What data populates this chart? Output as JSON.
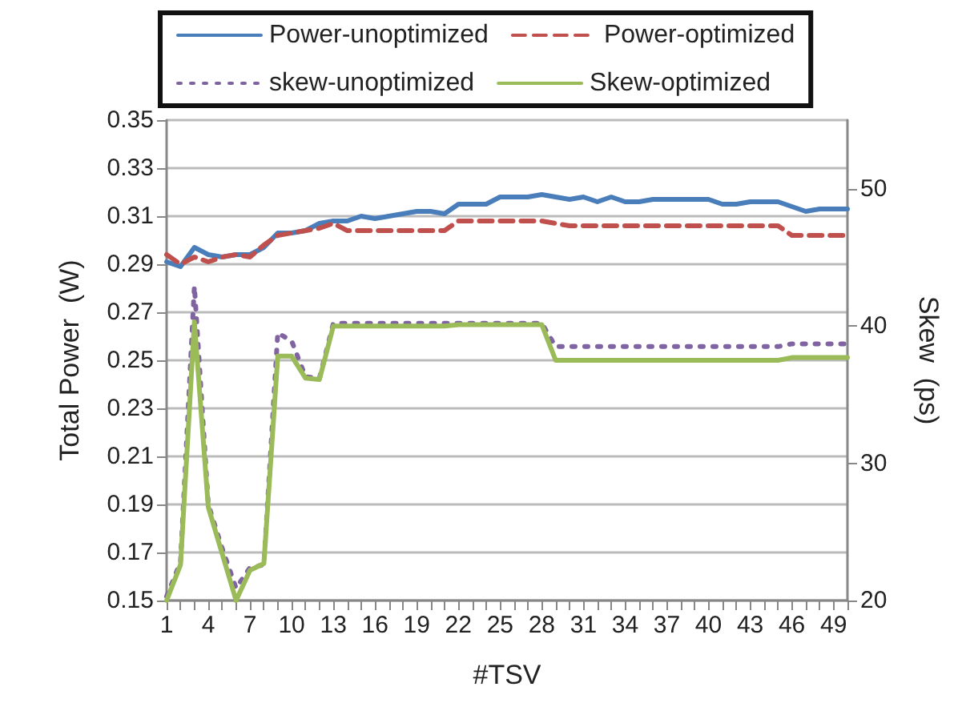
{
  "chart_data": {
    "type": "line",
    "xlabel": "#TSV",
    "ylabel": "Total Power  (W)",
    "y2label": "Skew  (ps)",
    "categories": [
      "1",
      null,
      null,
      "4",
      null,
      null,
      "7",
      null,
      null,
      "10",
      null,
      null,
      "13",
      null,
      null,
      "16",
      null,
      null,
      "19",
      null,
      null,
      "22",
      null,
      null,
      "25",
      null,
      null,
      "28",
      null,
      null,
      "31",
      null,
      null,
      "34",
      null,
      null,
      "37",
      null,
      null,
      "40",
      null,
      null,
      "43",
      null,
      null,
      "46",
      null,
      null,
      "49",
      null
    ],
    "ylim": [
      0.15,
      0.35
    ],
    "yticks": [
      0.15,
      0.17,
      0.19,
      0.21,
      0.23,
      0.25,
      0.27,
      0.29,
      0.31,
      0.33,
      0.35
    ],
    "y2lim": [
      20,
      55
    ],
    "y2ticks": [
      20,
      30,
      40,
      50
    ],
    "grid": "y",
    "legend": "top",
    "marker": "none",
    "series": [
      {
        "name": "Power-unoptimized",
        "color": "#4a7ebb",
        "line_style": "solid",
        "values": [
          0.291,
          0.289,
          0.297,
          0.294,
          0.293,
          0.294,
          0.294,
          0.297,
          0.303,
          0.303,
          0.304,
          0.307,
          0.308,
          0.308,
          0.31,
          0.309,
          0.31,
          0.311,
          0.312,
          0.312,
          0.311,
          0.315,
          0.315,
          0.315,
          0.318,
          0.318,
          0.318,
          0.319,
          0.318,
          0.317,
          0.318,
          0.316,
          0.318,
          0.316,
          0.316,
          0.317,
          0.317,
          0.317,
          0.317,
          0.317,
          0.315,
          0.315,
          0.316,
          0.316,
          0.316,
          0.314,
          0.312,
          0.313,
          0.313,
          0.313
        ]
      },
      {
        "name": "Power-optimized",
        "color": "#c0504d",
        "line_style": "dashed",
        "values": [
          0.294,
          0.29,
          0.293,
          0.291,
          0.293,
          0.294,
          0.293,
          0.298,
          0.302,
          0.303,
          0.304,
          0.305,
          0.307,
          0.304,
          0.304,
          0.304,
          0.304,
          0.304,
          0.304,
          0.304,
          0.304,
          0.308,
          0.308,
          0.308,
          0.308,
          0.308,
          0.308,
          0.308,
          0.307,
          0.306,
          0.306,
          0.306,
          0.306,
          0.306,
          0.306,
          0.306,
          0.306,
          0.306,
          0.306,
          0.306,
          0.306,
          0.306,
          0.306,
          0.306,
          0.306,
          0.302,
          0.302,
          0.302,
          0.302,
          0.302
        ]
      },
      {
        "name": "skew-unoptimized",
        "color": "#8064a2",
        "line_style": "dotted",
        "axis": "y2",
        "values": [
          20.3,
          22.8,
          42.9,
          27.0,
          23.8,
          20.9,
          22.4,
          22.6,
          39.5,
          38.9,
          36.3,
          36.2,
          40.2,
          40.2,
          40.2,
          40.2,
          40.2,
          40.2,
          40.2,
          40.2,
          40.2,
          40.2,
          40.2,
          40.2,
          40.2,
          40.2,
          40.2,
          40.2,
          38.5,
          38.5,
          38.5,
          38.5,
          38.5,
          38.5,
          38.5,
          38.5,
          38.5,
          38.5,
          38.5,
          38.5,
          38.5,
          38.5,
          38.5,
          38.5,
          38.5,
          38.7,
          38.7,
          38.7,
          38.7,
          38.7
        ]
      },
      {
        "name": "Skew-optimized",
        "color": "#9bbb59",
        "line_style": "solid",
        "axis": "y2",
        "values": [
          20,
          22.6,
          40.3,
          26.8,
          23.4,
          20,
          22.2,
          22.7,
          37.8,
          37.8,
          36.2,
          36.1,
          40.0,
          40.0,
          40.0,
          40.0,
          40.0,
          40.0,
          40.0,
          40.0,
          40.0,
          40.1,
          40.1,
          40.1,
          40.1,
          40.1,
          40.1,
          40.1,
          37.5,
          37.5,
          37.5,
          37.5,
          37.5,
          37.5,
          37.5,
          37.5,
          37.5,
          37.5,
          37.5,
          37.5,
          37.5,
          37.5,
          37.5,
          37.5,
          37.5,
          37.7,
          37.7,
          37.7,
          37.7,
          37.7
        ]
      }
    ]
  }
}
